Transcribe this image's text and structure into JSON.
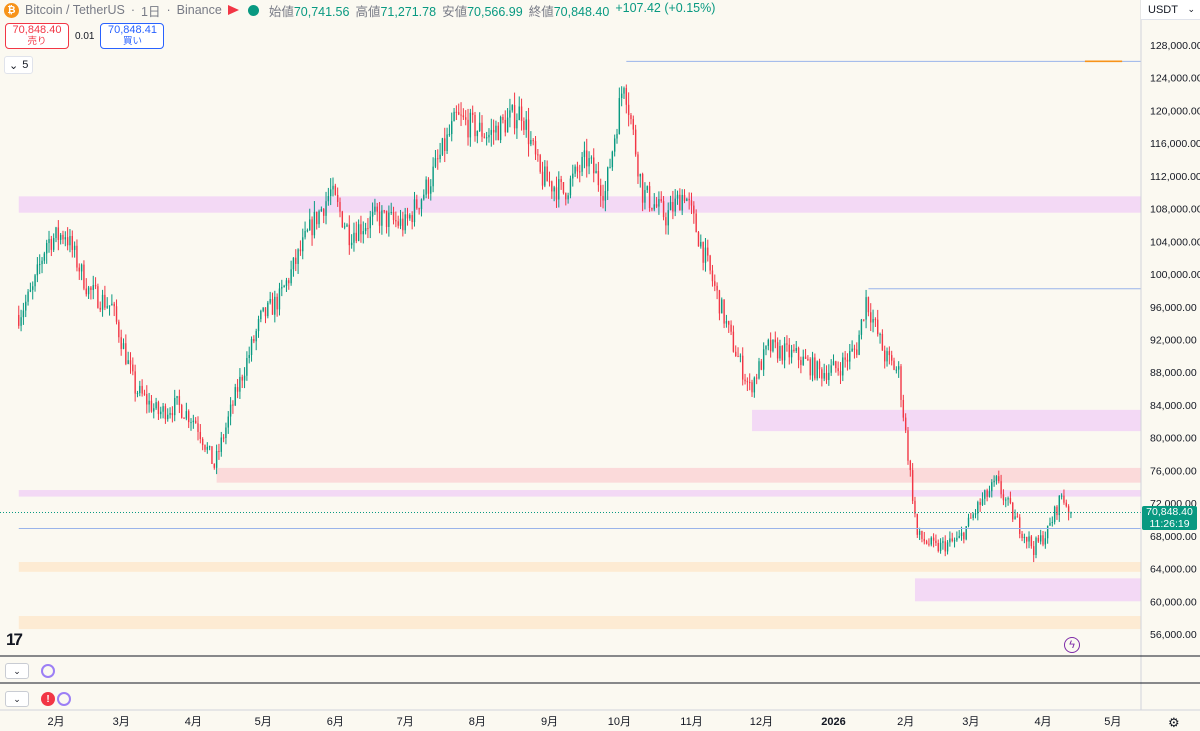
{
  "header": {
    "symbol": "Bitcoin / TetherUS",
    "interval": "1日",
    "exchange": "Binance",
    "open_label": "始値",
    "open": "70,741.56",
    "high_label": "高値",
    "high": "71,271.78",
    "low_label": "安値",
    "low": "70,566.99",
    "close_label": "終値",
    "close": "70,848.40",
    "change": "+107.42 (+0.15%)",
    "coin_glyph": "₿"
  },
  "trade": {
    "sell_price": "70,848.40",
    "sell_label": "売り",
    "spread": "0.01",
    "buy_price": "70,848.41",
    "buy_label": "買い"
  },
  "indicators_count": "5",
  "currency": "USDT",
  "last_price": "70,848.40",
  "countdown": "11:26:19",
  "logo": "17",
  "colors": {
    "up": "#089981",
    "down": "#f23645",
    "bg": "#fbf9f1",
    "zone_purple": "#f3d9f5",
    "zone_red": "#fbdada",
    "zone_orange": "#fdebd3",
    "level_blue": "#9ab4ea",
    "level_orange": "#f7931a"
  },
  "chart_data": {
    "type": "candlestick",
    "ylim": [
      54000,
      130000
    ],
    "y_ticks": [
      "56,000.00",
      "60,000.00",
      "64,000.00",
      "68,000.00",
      "72,000.00",
      "76,000.00",
      "80,000.00",
      "84,000.00",
      "88,000.00",
      "92,000.00",
      "96,000.00",
      "100,000.00",
      "104,000.00",
      "108,000.00",
      "112,000.00",
      "116,000.00",
      "120,000.00",
      "124,000.00",
      "128,000.00"
    ],
    "x_ticks": [
      "2月",
      "3月",
      "4月",
      "5月",
      "6月",
      "7月",
      "8月",
      "9月",
      "10月",
      "11月",
      "12月",
      "2026",
      "2月",
      "3月",
      "4月",
      "5月"
    ],
    "x_tick_days": [
      0,
      28,
      59,
      89,
      120,
      150,
      181,
      212,
      242,
      273,
      303,
      334,
      365,
      393,
      424,
      454
    ],
    "day_range": [
      -16,
      472
    ],
    "price_path": [
      {
        "day": -16,
        "price": 95000
      },
      {
        "day": -10,
        "price": 98000
      },
      {
        "day": -4,
        "price": 104000
      },
      {
        "day": 4,
        "price": 105000
      },
      {
        "day": 14,
        "price": 98000
      },
      {
        "day": 24,
        "price": 96000
      },
      {
        "day": 34,
        "price": 86000
      },
      {
        "day": 44,
        "price": 83000
      },
      {
        "day": 52,
        "price": 84000
      },
      {
        "day": 60,
        "price": 82000
      },
      {
        "day": 68,
        "price": 76500
      },
      {
        "day": 78,
        "price": 86000
      },
      {
        "day": 88,
        "price": 94500
      },
      {
        "day": 96,
        "price": 97000
      },
      {
        "day": 110,
        "price": 106000
      },
      {
        "day": 118,
        "price": 110000
      },
      {
        "day": 126,
        "price": 105000
      },
      {
        "day": 138,
        "price": 107000
      },
      {
        "day": 150,
        "price": 106000
      },
      {
        "day": 160,
        "price": 111000
      },
      {
        "day": 172,
        "price": 119000
      },
      {
        "day": 186,
        "price": 117000
      },
      {
        "day": 200,
        "price": 120000
      },
      {
        "day": 208,
        "price": 112000
      },
      {
        "day": 218,
        "price": 110000
      },
      {
        "day": 228,
        "price": 114000
      },
      {
        "day": 236,
        "price": 110000
      },
      {
        "day": 244,
        "price": 124000
      },
      {
        "day": 252,
        "price": 110000
      },
      {
        "day": 262,
        "price": 107000
      },
      {
        "day": 270,
        "price": 110000
      },
      {
        "day": 280,
        "price": 101000
      },
      {
        "day": 290,
        "price": 92000
      },
      {
        "day": 298,
        "price": 86000
      },
      {
        "day": 306,
        "price": 91000
      },
      {
        "day": 318,
        "price": 90000
      },
      {
        "day": 328,
        "price": 88000
      },
      {
        "day": 336,
        "price": 88500
      },
      {
        "day": 344,
        "price": 91000
      },
      {
        "day": 348,
        "price": 97000
      },
      {
        "day": 356,
        "price": 90000
      },
      {
        "day": 362,
        "price": 88000
      },
      {
        "day": 366,
        "price": 78000
      },
      {
        "day": 370,
        "price": 68000
      },
      {
        "day": 378,
        "price": 66500
      },
      {
        "day": 388,
        "price": 67500
      },
      {
        "day": 396,
        "price": 71500
      },
      {
        "day": 404,
        "price": 74500
      },
      {
        "day": 412,
        "price": 70000
      },
      {
        "day": 420,
        "price": 66500
      },
      {
        "day": 426,
        "price": 68500
      },
      {
        "day": 432,
        "price": 73000
      },
      {
        "day": 436,
        "price": 70848
      }
    ],
    "zones": [
      {
        "y0": 107500,
        "y1": 109500,
        "x0_day": -16,
        "x1_day": 472,
        "color": "#f3d9f5"
      },
      {
        "y0": 80800,
        "y1": 83400,
        "x0_day": 299,
        "x1_day": 472,
        "color": "#f3d9f5"
      },
      {
        "y0": 74500,
        "y1": 76300,
        "x0_day": 69,
        "x1_day": 472,
        "color": "#fbdada"
      },
      {
        "y0": 72800,
        "y1": 73600,
        "x0_day": -16,
        "x1_day": 472,
        "color": "#f3d9f5"
      },
      {
        "y0": 63600,
        "y1": 64800,
        "x0_day": -16,
        "x1_day": 472,
        "color": "#fdebd3"
      },
      {
        "y0": 60000,
        "y1": 62800,
        "x0_day": 369,
        "x1_day": 472,
        "color": "#f3d9f5"
      },
      {
        "y0": 56600,
        "y1": 58200,
        "x0_day": -16,
        "x1_day": 472,
        "color": "#fdebd3"
      }
    ],
    "levels": [
      {
        "y": 126000,
        "x0_day": 245,
        "x1_day": 472,
        "color": "#9ab4ea"
      },
      {
        "y": 126000,
        "x0_day": 442,
        "x1_day": 458,
        "color": "#f7931a"
      },
      {
        "y": 98200,
        "x0_day": 349,
        "x1_day": 472,
        "color": "#9ab4ea"
      },
      {
        "y": 68900,
        "x0_day": -16,
        "x1_day": 472,
        "color": "#9ab4ea"
      }
    ]
  }
}
